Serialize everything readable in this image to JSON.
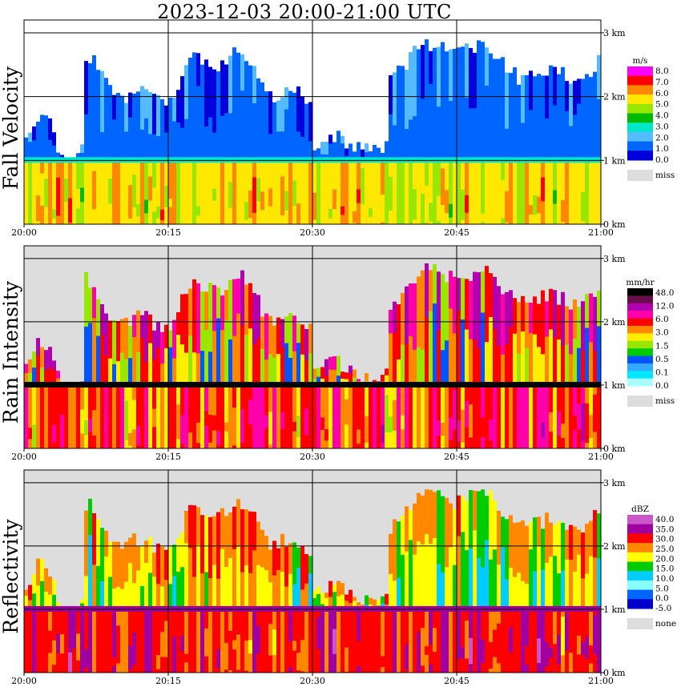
{
  "title": "2023-12-03   20:00-21:00 UTC",
  "time_ticks": [
    "20:00",
    "20:15",
    "20:30",
    "20:45",
    "21:00"
  ],
  "height_ticks": [
    "0 km",
    "1 km",
    "2 km",
    "3 km"
  ],
  "chart_data": [
    {
      "type": "heatmap",
      "ylabel": "Fall Velocity",
      "xlim": [
        "20:00",
        "21:00"
      ],
      "ylim": [
        0,
        3.2
      ],
      "legend_unit": "m/s",
      "legend_labels": [
        "8.0",
        "7.0",
        "6.0",
        "5.0",
        "4.0",
        "3.0",
        "2.0",
        "1.0",
        "0.0"
      ],
      "legend_colors": [
        "#ff00ff",
        "#ff0000",
        "#ff8800",
        "#ffe800",
        "#99e600",
        "#00bb00",
        "#00e8c8",
        "#55bbff",
        "#0066ff",
        "#0000dd"
      ],
      "miss_label": "miss",
      "miss_color": "#dddddd",
      "grid": true
    },
    {
      "type": "heatmap",
      "ylabel": "Rain Intensity",
      "xlim": [
        "20:00",
        "21:00"
      ],
      "ylim": [
        0,
        3.2
      ],
      "legend_unit": "mm/hr",
      "legend_labels": [
        "48.0",
        "12.0",
        "6.0",
        "3.0",
        "1.5",
        "0.5",
        "0.1",
        "0.0"
      ],
      "legend_colors": [
        "#000000",
        "#6a0d4c",
        "#b000b0",
        "#ff00aa",
        "#ff0000",
        "#ff8800",
        "#ffee00",
        "#99e600",
        "#00cc00",
        "#0055ff",
        "#33aaff",
        "#00e8ff",
        "#aaffff"
      ],
      "miss_label": "miss",
      "miss_color": "#dddddd",
      "grid": true
    },
    {
      "type": "heatmap",
      "ylabel": "Reflectivity",
      "xlim": [
        "20:00",
        "21:00"
      ],
      "ylim": [
        0,
        3.2
      ],
      "legend_unit": "dBZ",
      "legend_labels": [
        "40.0",
        "35.0",
        "30.0",
        "25.0",
        "20.0",
        "15.0",
        "10.0",
        "5.0",
        "0.0",
        "-5.0"
      ],
      "legend_colors": [
        "#cc55cc",
        "#a000a0",
        "#ff0000",
        "#ff8800",
        "#ffff00",
        "#00cc00",
        "#00ccff",
        "#88ffff",
        "#0066ff",
        "#0000cc"
      ],
      "miss_label": "none",
      "miss_color": "#dddddd",
      "grid": true
    }
  ]
}
